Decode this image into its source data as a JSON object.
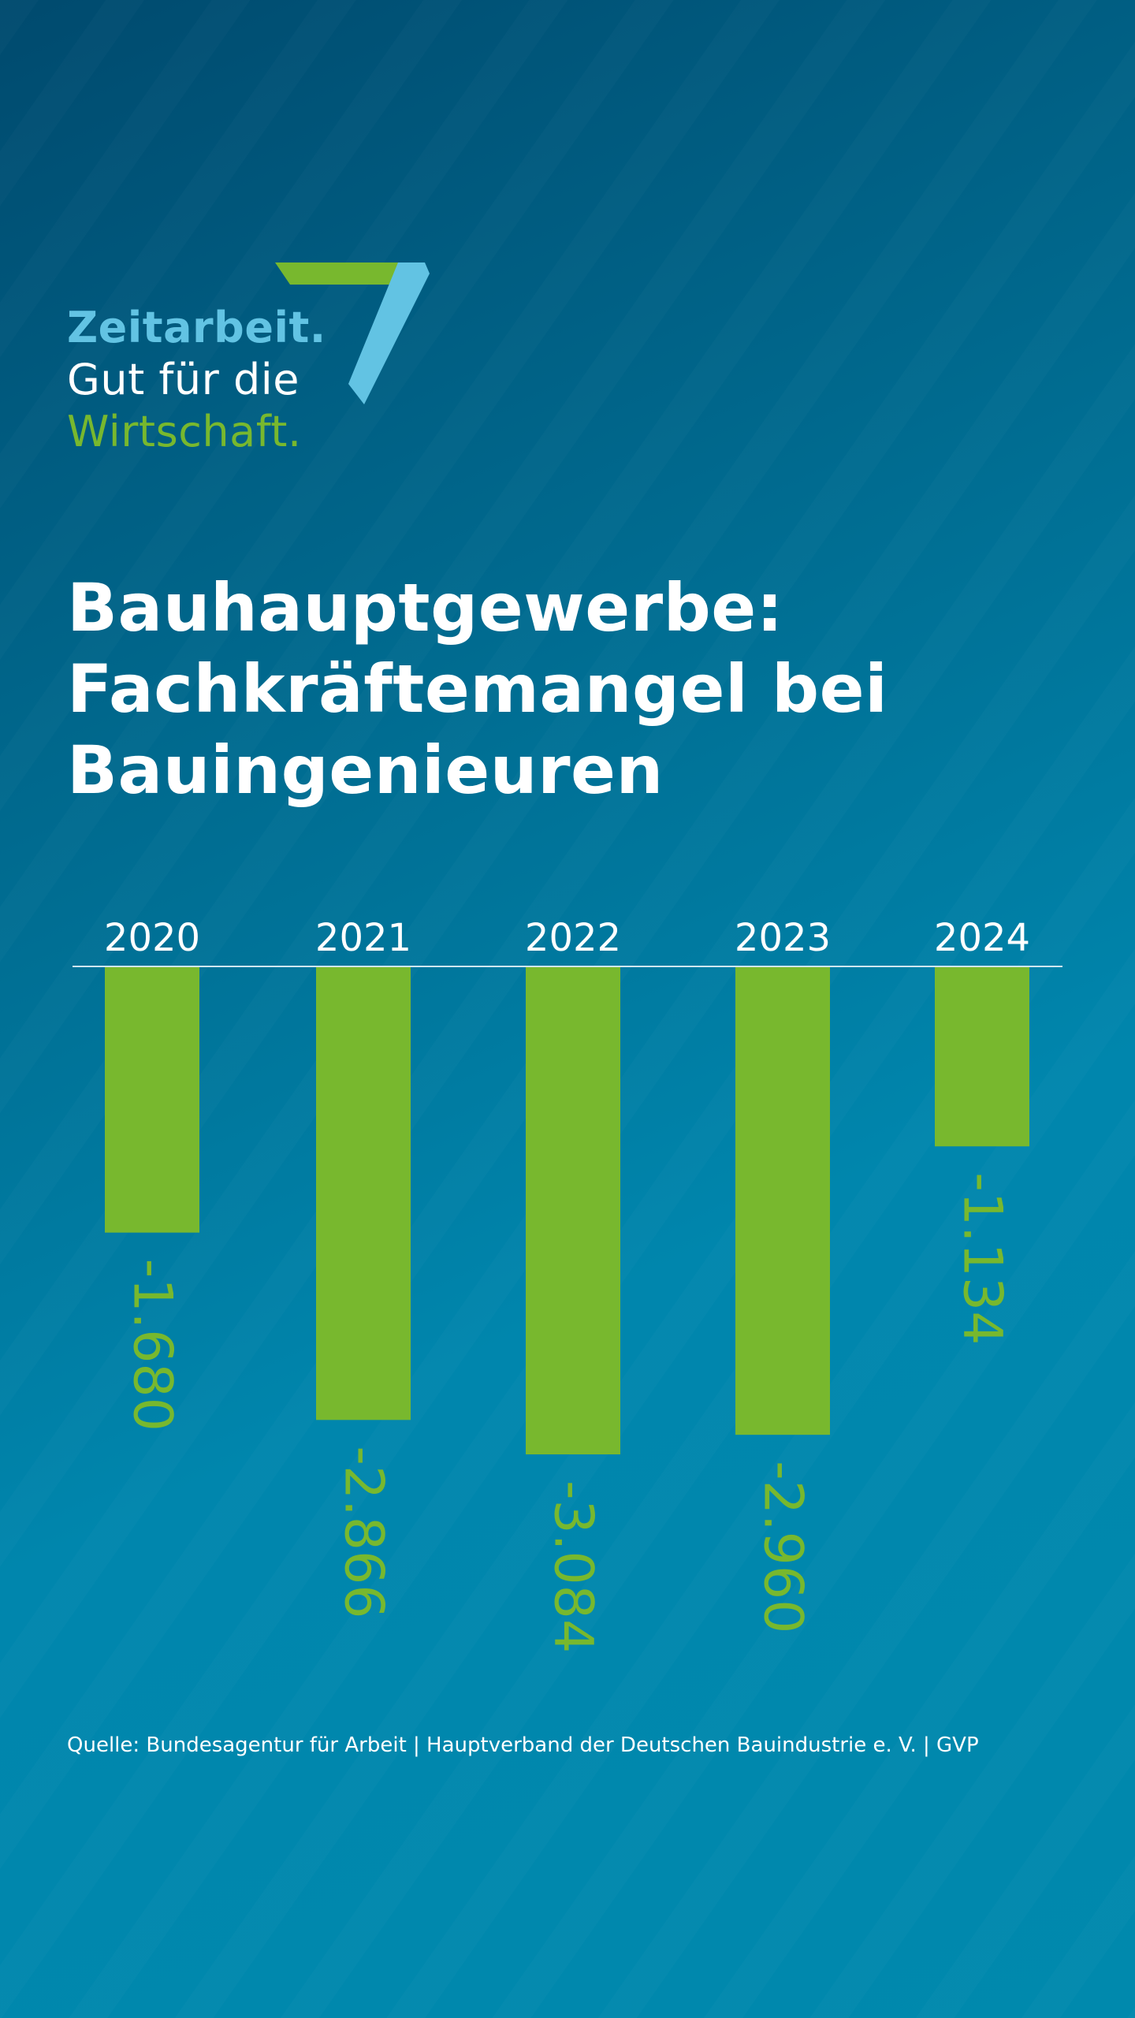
{
  "logo": {
    "line1": "Zeitarbeit.",
    "line2": "Gut für die",
    "line3": "Wirtschaft.",
    "numeral": "7"
  },
  "headline": {
    "line1": "Bauhauptgewerbe:",
    "line2": "Fachkräftemangel bei",
    "line3": "Bauingenieuren"
  },
  "chart_data": {
    "type": "bar",
    "orientation": "vertical-downward",
    "categories": [
      "2020",
      "2021",
      "2022",
      "2023",
      "2024"
    ],
    "values": [
      -1680,
      -2866,
      -3084,
      -2960,
      -1134
    ],
    "value_labels": [
      "-1.680",
      "-2.866",
      "-3.084",
      "-2.960",
      "-1.134"
    ],
    "category_position": "top",
    "value_label_orientation": "rotated-90",
    "ylim": [
      -3084,
      0
    ],
    "grid": false,
    "legend": "none"
  },
  "source": "Quelle: Bundesagentur für Arbeit | Hauptverband der Deutschen Bauindustrie e. V. | GVP",
  "colors": {
    "background_dark": "#004a6e",
    "background_light": "#0089ad",
    "accent_green": "#78b82e",
    "accent_light_blue": "#62c3e3",
    "text": "#ffffff",
    "baseline": "#cfe6ef"
  }
}
